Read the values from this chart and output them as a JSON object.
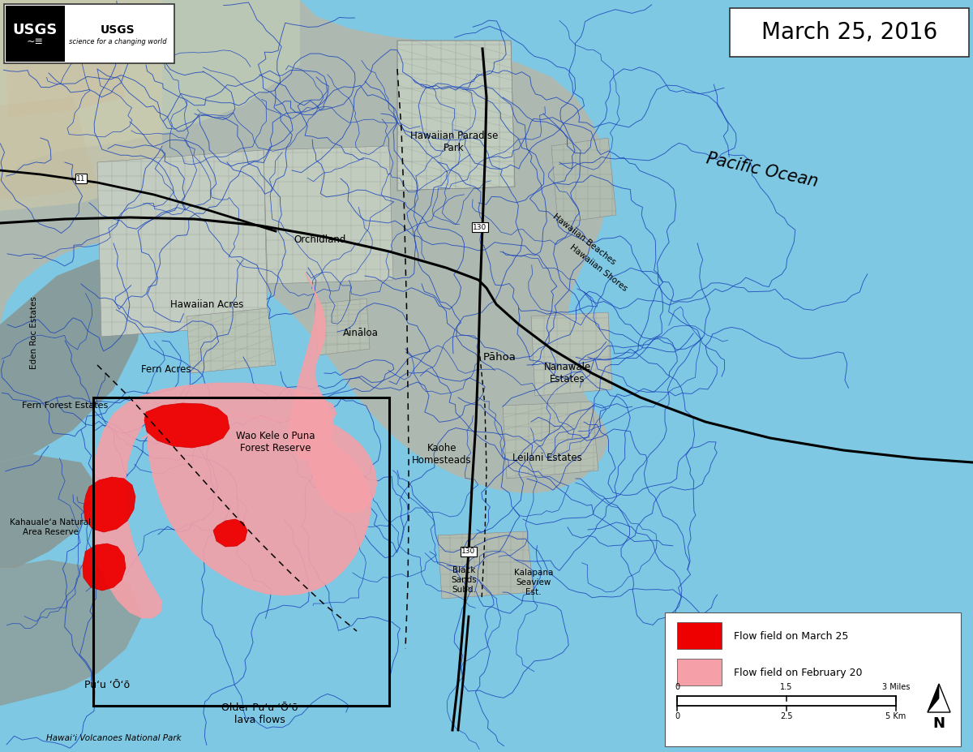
{
  "title": "March 25, 2016",
  "bg_ocean_color": "#7ec8e3",
  "bg_land_color_main": "#b0bdb5",
  "date_box_text": "March 25, 2016",
  "legend_items": [
    {
      "label": "Flow field on March 25",
      "color": "#ee0000"
    },
    {
      "label": "Flow field on February 20",
      "color": "#f5a0a8"
    }
  ],
  "figure_width": 12.0,
  "figure_height": 9.27
}
